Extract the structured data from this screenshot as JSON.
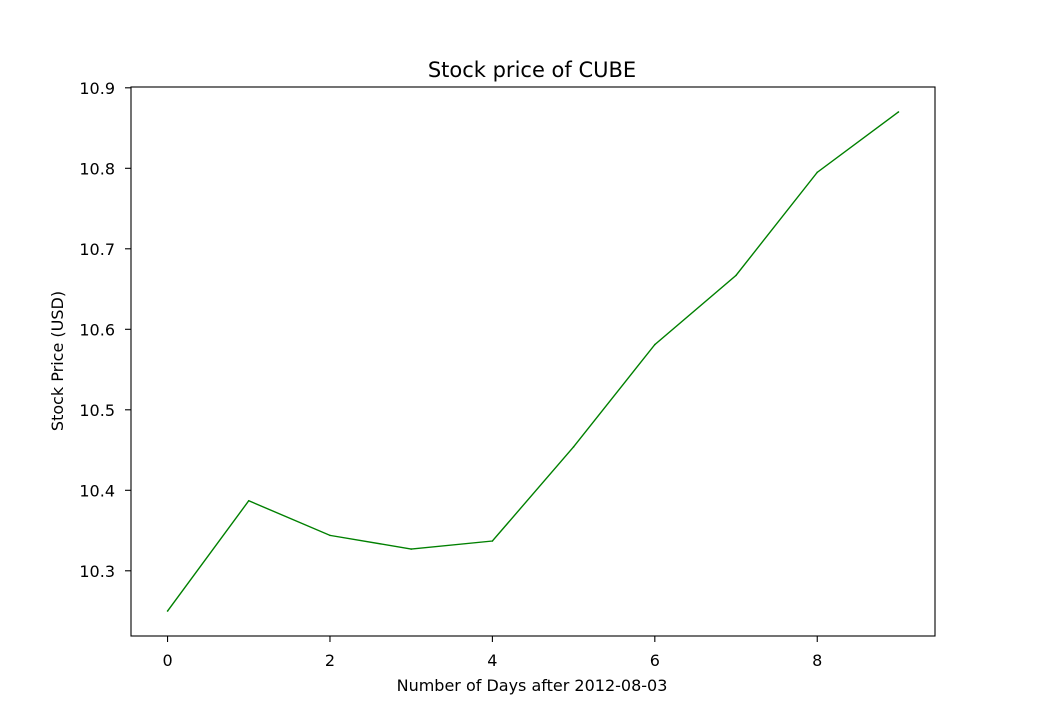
{
  "chart_data": {
    "type": "line",
    "title": "Stock price of CUBE",
    "xlabel": "Number of Days after 2012-08-03",
    "ylabel": "Stock Price (USD)",
    "x": [
      0,
      1,
      2,
      3,
      4,
      5,
      6,
      7,
      8,
      9
    ],
    "series": [
      {
        "values": [
          10.25,
          10.387,
          10.344,
          10.327,
          10.337,
          10.454,
          10.581,
          10.667,
          10.795,
          10.87
        ],
        "color": "#008000"
      }
    ],
    "xlim": [
      -0.45,
      9.45
    ],
    "ylim": [
      10.219,
      10.901
    ],
    "xticks": [
      0,
      2,
      4,
      6,
      8
    ],
    "yticks": [
      10.3,
      10.4,
      10.5,
      10.6,
      10.7,
      10.8,
      10.9
    ],
    "grid": false,
    "legend": false
  }
}
